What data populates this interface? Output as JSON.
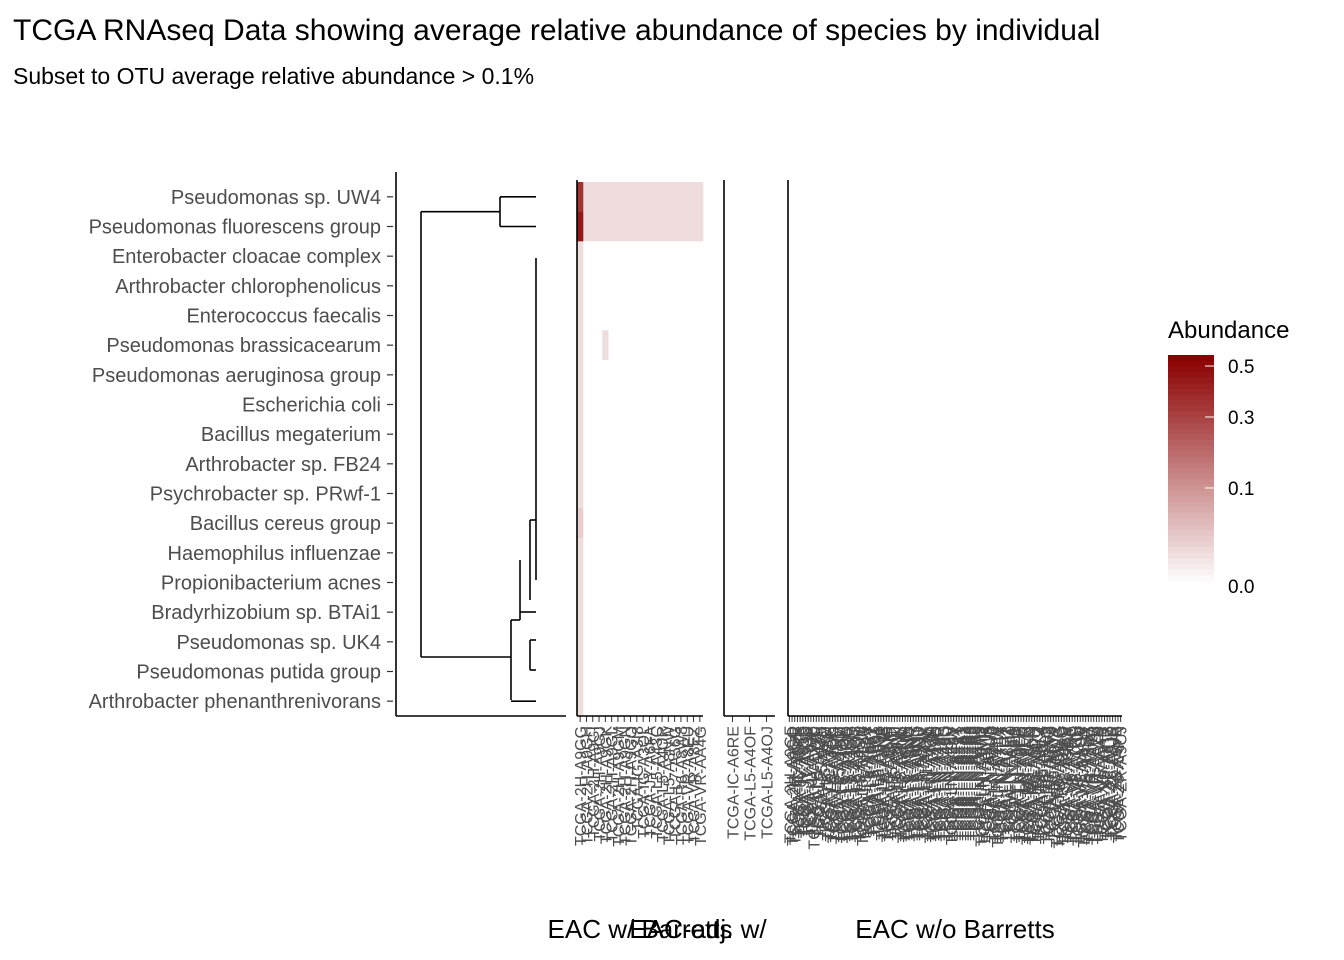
{
  "chart_data": {
    "type": "heatmap",
    "title": "TCGA RNAseq Data showing average relative abundance of species by individual",
    "subtitle": "Subset to OTU average relative abundance > 0.1%",
    "legend": {
      "title": "Abundance",
      "ticks": [
        "0.5",
        "0.3",
        "0.1",
        "0.0"
      ],
      "placement": "right",
      "low_color": "#ffffff",
      "high_color": "#8b0000"
    },
    "species": [
      "Pseudomonas sp. UW4",
      "Pseudomonas fluorescens group",
      "Enterobacter cloacae complex",
      "Arthrobacter chlorophenolicus",
      "Enterococcus faecalis",
      "Pseudomonas brassicacearum",
      "Pseudomonas aeruginosa group",
      "Escherichia coli",
      "Bacillus megaterium",
      "Arthrobacter sp. FB24",
      "Psychrobacter sp. PRwf-1",
      "Bacillus cereus group",
      "Haemophilus influenzae",
      "Propionibacterium acnes",
      "Bradyrhizobium sp. BTAi1",
      "Pseudomonas sp. UK4",
      "Pseudomonas putida group",
      "Arthrobacter phenanthrenivorans"
    ],
    "panels": [
      {
        "label": "EAC w/ Barretts",
        "samples": [
          "TCGA-2H-A9GG",
          "TCGA-2H-A9GH",
          "TCGA-2H-A9GI",
          "TCGA-2H-A9GJ",
          "TCGA-2H-A9GK",
          "TCGA-2H-A9GL",
          "TCGA-2H-A9GM",
          "TCGA-2H-A9GN",
          "TCGA-2H-A9GO",
          "TCGA-IG-A3I8",
          "TCGA-IG-A3QL",
          "TCGA-JY-A6FA",
          "TCGA-L5-A43C",
          "TCGA-L5-A4OR",
          "TCGA-L5-A8NW",
          "TCGA-L7-A56G",
          "TCGA-R6-A8W8",
          "TCGA-VR-A8EU",
          "TCGA-VR-A8EZ",
          "TCGA-VR-AA4G"
        ],
        "columns": [
          [
            0.02,
            0.45
          ],
          [
            0.01,
            0.01
          ],
          [
            0.01,
            0.01
          ],
          [
            0.01,
            0.01
          ],
          [
            0,
            0.01
          ],
          [
            0,
            0.01
          ],
          [
            0.01,
            0.01
          ],
          [
            0,
            0.01
          ],
          [
            0.01,
            0.02
          ],
          [
            0,
            0.01
          ],
          [
            0.01,
            0.02
          ],
          [
            0,
            0.01
          ],
          [
            0.01,
            0.02
          ],
          [
            0.01,
            0.02
          ],
          [
            0.01,
            0.02
          ],
          [
            0,
            0.01
          ],
          [
            0.01,
            0.02
          ],
          [
            0,
            0.01
          ],
          [
            0.01,
            0.01
          ],
          [
            0,
            0.01
          ]
        ],
        "values": [
          [
            0.35,
            0.45,
            0.01,
            0.01,
            0.01,
            0.01,
            0.01,
            0.01,
            0.01,
            0.01,
            0.01,
            0.02,
            0.01,
            0.01,
            0.01,
            0.01,
            0.01,
            0.01
          ],
          [
            0.01,
            0.01,
            0,
            0,
            0,
            0,
            0,
            0,
            0,
            0,
            0,
            0,
            0,
            0,
            0,
            0,
            0,
            0
          ],
          [
            0.01,
            0.01,
            0,
            0,
            0,
            0,
            0,
            0,
            0,
            0,
            0,
            0,
            0,
            0,
            0,
            0,
            0,
            0
          ],
          [
            0.01,
            0.01,
            0,
            0,
            0,
            0,
            0,
            0,
            0,
            0,
            0,
            0,
            0,
            0,
            0,
            0,
            0,
            0
          ],
          [
            0.01,
            0.01,
            0,
            0,
            0,
            0.01,
            0,
            0,
            0,
            0,
            0,
            0,
            0,
            0,
            0,
            0,
            0,
            0
          ],
          [
            0.01,
            0.01,
            0,
            0,
            0,
            0,
            0,
            0,
            0,
            0,
            0,
            0,
            0,
            0,
            0,
            0,
            0,
            0
          ],
          [
            0.01,
            0.01,
            0,
            0,
            0,
            0,
            0,
            0,
            0,
            0,
            0,
            0,
            0,
            0,
            0,
            0,
            0,
            0
          ],
          [
            0.01,
            0.01,
            0,
            0,
            0,
            0,
            0,
            0,
            0,
            0,
            0,
            0,
            0,
            0,
            0,
            0,
            0,
            0
          ],
          [
            0.01,
            0.01,
            0,
            0,
            0,
            0,
            0,
            0,
            0,
            0,
            0,
            0,
            0,
            0,
            0,
            0,
            0,
            0
          ],
          [
            0.01,
            0.01,
            0,
            0,
            0,
            0,
            0,
            0,
            0,
            0,
            0,
            0,
            0,
            0,
            0,
            0,
            0,
            0
          ],
          [
            0.01,
            0.01,
            0,
            0,
            0,
            0,
            0,
            0,
            0,
            0,
            0,
            0,
            0,
            0,
            0,
            0,
            0,
            0
          ],
          [
            0.01,
            0.01,
            0,
            0,
            0,
            0,
            0,
            0,
            0,
            0,
            0,
            0,
            0,
            0,
            0,
            0,
            0,
            0
          ],
          [
            0.01,
            0.01,
            0,
            0,
            0,
            0,
            0,
            0,
            0,
            0,
            0,
            0,
            0,
            0,
            0,
            0,
            0,
            0
          ],
          [
            0.01,
            0.01,
            0,
            0,
            0,
            0,
            0,
            0,
            0,
            0,
            0,
            0,
            0,
            0,
            0,
            0,
            0,
            0
          ],
          [
            0.01,
            0.01,
            0,
            0,
            0,
            0,
            0,
            0,
            0,
            0,
            0,
            0,
            0,
            0,
            0,
            0,
            0,
            0
          ],
          [
            0.01,
            0.01,
            0,
            0,
            0,
            0,
            0,
            0,
            0,
            0,
            0,
            0,
            0,
            0,
            0,
            0,
            0,
            0
          ],
          [
            0.01,
            0.01,
            0,
            0,
            0,
            0,
            0,
            0,
            0,
            0,
            0,
            0,
            0,
            0,
            0,
            0,
            0,
            0
          ],
          [
            0.01,
            0.01,
            0,
            0,
            0,
            0,
            0,
            0,
            0,
            0,
            0,
            0,
            0,
            0,
            0,
            0,
            0,
            0
          ],
          [
            0.01,
            0.01,
            0,
            0,
            0,
            0,
            0,
            0,
            0,
            0,
            0,
            0,
            0,
            0,
            0,
            0,
            0,
            0
          ],
          [
            0.01,
            0.01,
            0,
            0,
            0,
            0,
            0,
            0,
            0,
            0,
            0,
            0,
            0,
            0,
            0,
            0,
            0,
            0
          ]
        ]
      },
      {
        "label": "EAC-adj. w/",
        "samples": [
          "TCGA-IC-A6RE",
          "TCGA-L5-A4OF",
          "TCGA-L5-A4OJ"
        ],
        "values": []
      },
      {
        "label": "EAC w/o Barretts",
        "samples": [
          "TCGA-2H-A9GF",
          "TCGA-2H-A9GQ",
          "TCGA-2H-A9GR",
          "TCGA-IC-A6RF",
          "TCGA-JY-A6F8",
          "TCGA-JY-A93C",
          "TCGA-JY-A93D",
          "TCGA-JY-A93F",
          "TCGA-JY-A938",
          "TCGA-KH-A6WC",
          "TCGA-L5-A43E",
          "TCGA-L5-A43H",
          "TCGA-L5-A43I",
          "TCGA-L5-A43J",
          "TCGA-L5-A43M",
          "TCGA-L5-A4OE",
          "TCGA-L5-A4OG",
          "TCGA-L5-A4OH",
          "TCGA-L5-A4OI",
          "TCGA-L5-A4OM",
          "TCGA-L5-A4ON",
          "TCGA-L5-A4OO",
          "TCGA-L5-A4OP",
          "TCGA-L5-A4OQ",
          "TCGA-L5-A4OS",
          "TCGA-L5-A4OT",
          "TCGA-L5-A4OU",
          "TCGA-L5-A4OW",
          "TCGA-L5-A4OX",
          "TCGA-L5-A88V",
          "TCGA-L5-A88Y",
          "TCGA-L5-A88Z",
          "TCGA-L5-A891",
          "TCGA-L5-A893",
          "TCGA-L5-A8NE",
          "TCGA-L5-A8NF",
          "TCGA-L5-A8NG",
          "TCGA-L5-A8NH",
          "TCGA-L5-A8NI",
          "TCGA-L5-A8NJ",
          "TCGA-L5-A8NK",
          "TCGA-L5-A8NL",
          "TCGA-L5-A8NM",
          "TCGA-L5-A8NN",
          "TCGA-L5-A8NQ",
          "TCGA-L5-A8NR",
          "TCGA-L5-A8NS",
          "TCGA-L5-A8NT",
          "TCGA-L5-A8NU",
          "TCGA-L5-A8NV",
          "TCGA-LN-A49K",
          "TCGA-LN-A49L",
          "TCGA-LN-A49M",
          "TCGA-LN-A49N",
          "TCGA-LN-A49O",
          "TCGA-LN-A49P",
          "TCGA-LN-A49R",
          "TCGA-LN-A49S",
          "TCGA-LN-A49U",
          "TCGA-LN-A49V",
          "TCGA-LN-A49W",
          "TCGA-LN-A49X",
          "TCGA-LN-A49Y",
          "TCGA-LN-A4A1",
          "TCGA-LN-A4A2",
          "TCGA-LN-A4A3",
          "TCGA-LN-A4A4",
          "TCGA-LN-A4A5",
          "TCGA-LN-A4A6",
          "TCGA-LN-A4A8",
          "TCGA-LN-A4A9",
          "TCGA-LN-A4MQ",
          "TCGA-LN-A4MR",
          "TCGA-LN-A5U5",
          "TCGA-LN-A5U6",
          "TCGA-LN-A5U7",
          "TCGA-LN-A7HV",
          "TCGA-LN-A7HW",
          "TCGA-LN-A7HX",
          "TCGA-LN-A7HY",
          "TCGA-LN-A7HZ",
          "TCGA-LN-A8HZ",
          "TCGA-LN-A8I0",
          "TCGA-LN-A8I1",
          "TCGA-LN-A9FO",
          "TCGA-LN-A9FP",
          "TCGA-LN-A9FQ",
          "TCGA-LN-A9FR",
          "TCGA-M9-A5M8",
          "TCGA-Q9-A6FU",
          "TCGA-R6-A6DN",
          "TCGA-R6-A6DQ",
          "TCGA-R6-A6KZ",
          "TCGA-R6-A6L4",
          "TCGA-R6-A6L6",
          "TCGA-R6-A6XG",
          "TCGA-R6-A6XQ",
          "TCGA-R6-A6Y0",
          "TCGA-R6-A6Y2",
          "TCGA-R6-A8WC",
          "TCGA-R6-A8WG",
          "TCGA-RE-A7BO",
          "TCGA-S8-A6BV",
          "TCGA-S8-A6BW",
          "TCGA-V5-A7RB",
          "TCGA-V5-A7RC",
          "TCGA-V5-A7RE",
          "TCGA-V5-AA7W",
          "TCGA-V5-AASV",
          "TCGA-V5-AASW",
          "TCGA-V5-AASX",
          "TCGA-VR-A8Q7",
          "TCGA-VR-AA4D",
          "TCGA-VR-AA7B",
          "TCGA-VR-AA7D",
          "TCGA-VR-AA7I",
          "TCGA-X8-AAAR",
          "TCGA-XP-A8T7",
          "TCGA-XP-A8T8",
          "TCGA-Z6-A8JD",
          "TCGA-Z6-A8JE",
          "TCGA-Z6-A9VB",
          "TCGA-Z6-AAPN",
          "TCGA-ZR-A9CJ"
        ],
        "values": []
      }
    ]
  }
}
